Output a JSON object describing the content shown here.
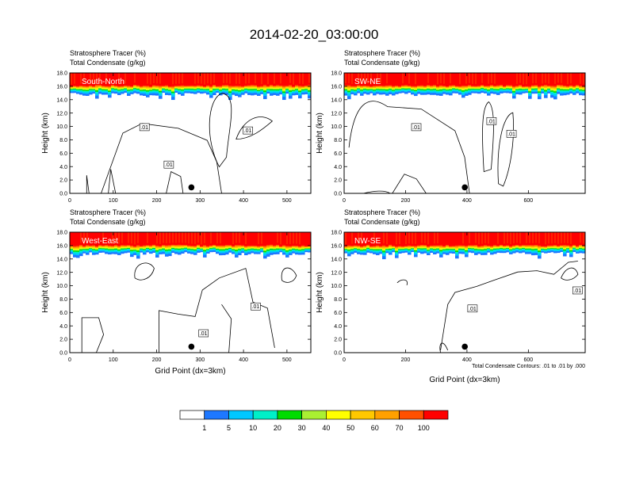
{
  "title": "2014-02-20_03:00:00",
  "footnote": "Total Condensate Contours: .01 to .01 by .000",
  "colors": {
    "scale": [
      "#ffffff",
      "#1e78ff",
      "#00c8ff",
      "#00f0c8",
      "#00dc00",
      "#aaf032",
      "#ffff00",
      "#ffc800",
      "#ffa000",
      "#ff5000",
      "#ff0000"
    ],
    "contour": "#000000"
  },
  "chart_data": [
    {
      "type": "heatmap",
      "panel_label": "South-North",
      "title_lines": [
        "Stratosphere Tracer   (%)",
        "Total Condensate   (g/kg)"
      ],
      "ylabel": "Height (km)",
      "xlabel": "",
      "x_ticks": [
        0,
        100,
        200,
        300,
        400,
        500
      ],
      "xlim": [
        0,
        555
      ],
      "y_ticks": [
        "0.0",
        "2.0",
        "4.0",
        "6.0",
        "8.0",
        "10.0",
        "12.0",
        "14.0",
        "16.0",
        "18.0"
      ],
      "ylim": [
        0,
        18
      ],
      "tracer_band": {
        "top_km": 18,
        "saturation_base_km": 16.1,
        "blue_base_km": 14.8
      },
      "marker": {
        "x": 280,
        "y": 0.9
      },
      "contour_labels": [
        {
          "text": ".01",
          "x": 172,
          "y": 9.9
        },
        {
          "text": ".01",
          "x": 410,
          "y": 9.4
        },
        {
          "text": ".01",
          "x": 228,
          "y": 4.3
        }
      ]
    },
    {
      "type": "heatmap",
      "panel_label": "SW-NE",
      "title_lines": [
        "Stratosphere Tracer   (%)",
        "Total Condensate   (g/kg)"
      ],
      "ylabel": "Height (km)",
      "xlabel": "",
      "x_ticks": [
        0,
        200,
        400,
        600
      ],
      "xlim": [
        0,
        785
      ],
      "y_ticks": [
        "0.0",
        "2.0",
        "4.0",
        "6.0",
        "8.0",
        "10.0",
        "12.0",
        "14.0",
        "16.0",
        "18.0"
      ],
      "ylim": [
        0,
        18
      ],
      "tracer_band": {
        "top_km": 18,
        "saturation_base_km": 16.1,
        "blue_base_km": 14.8
      },
      "marker": {
        "x": 393,
        "y": 0.9
      },
      "contour_labels": [
        {
          "text": ".01",
          "x": 235,
          "y": 9.9
        },
        {
          "text": ".01",
          "x": 480,
          "y": 10.8
        },
        {
          "text": ".01",
          "x": 545,
          "y": 8.9
        }
      ]
    },
    {
      "type": "heatmap",
      "panel_label": "West-East",
      "title_lines": [
        "Stratosphere Tracer   (%)",
        "Total Condensate   (g/kg)"
      ],
      "ylabel": "Height (km)",
      "xlabel": "Grid Point (dx=3km)",
      "x_ticks": [
        0,
        100,
        200,
        300,
        400,
        500
      ],
      "xlim": [
        0,
        555
      ],
      "y_ticks": [
        "0.0",
        "2.0",
        "4.0",
        "6.0",
        "8.0",
        "10.0",
        "12.0",
        "14.0",
        "16.0",
        "18.0"
      ],
      "ylim": [
        0,
        18
      ],
      "tracer_band": {
        "top_km": 18,
        "saturation_base_km": 16.0,
        "blue_base_km": 14.8
      },
      "marker": {
        "x": 280,
        "y": 0.9
      },
      "contour_labels": [
        {
          "text": ".01",
          "x": 428,
          "y": 6.9
        },
        {
          "text": ".01",
          "x": 308,
          "y": 2.9
        }
      ]
    },
    {
      "type": "heatmap",
      "panel_label": "NW-SE",
      "title_lines": [
        "Stratosphere Tracer   (%)",
        "Total Condensate   (g/kg)"
      ],
      "ylabel": "Height (km)",
      "xlabel": "Grid Point (dx=3km)",
      "x_ticks": [
        0,
        200,
        400,
        600
      ],
      "xlim": [
        0,
        785
      ],
      "y_ticks": [
        "0.0",
        "2.0",
        "4.0",
        "6.0",
        "8.0",
        "10.0",
        "12.0",
        "14.0",
        "16.0",
        "18.0"
      ],
      "ylim": [
        0,
        18
      ],
      "tracer_band": {
        "top_km": 18,
        "saturation_base_km": 16.0,
        "blue_base_km": 14.8
      },
      "marker": {
        "x": 393,
        "y": 0.9
      },
      "contour_labels": [
        {
          "text": ".01",
          "x": 418,
          "y": 6.6
        },
        {
          "text": ".01",
          "x": 760,
          "y": 9.3
        }
      ]
    }
  ],
  "colorbar": {
    "labels": [
      "1",
      "5",
      "10",
      "20",
      "30",
      "40",
      "50",
      "60",
      "70",
      "100"
    ]
  }
}
